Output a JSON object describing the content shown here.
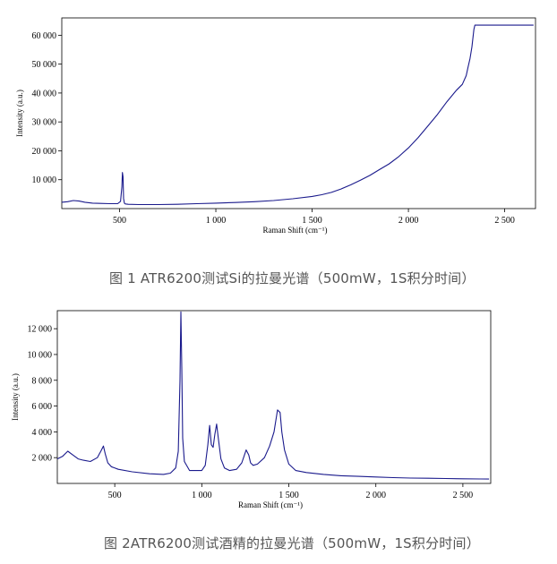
{
  "captions": {
    "fig1": "图 1 ATR6200测试Si的拉曼光谱（500mW，1S积分时间）",
    "fig2": "图 2ATR6200测试酒精的拉曼光谱（500mW，1S积分时间）"
  },
  "chart_data": [
    {
      "type": "line",
      "title": "",
      "xlabel": "Raman Shift (cm⁻¹)",
      "ylabel": "Intensity (a.u.)",
      "xlim": [
        200,
        2660
      ],
      "ylim": [
        0,
        66000
      ],
      "xticks": [
        500,
        1000,
        1500,
        2000,
        2500
      ],
      "xtick_labels": [
        "500",
        "1 000",
        "1 500",
        "2 000",
        "2 500"
      ],
      "yticks": [
        10000,
        20000,
        30000,
        40000,
        50000,
        60000
      ],
      "ytick_labels": [
        "10 000",
        "20 000",
        "30 000",
        "40 000",
        "50 000",
        "60 000"
      ],
      "grid": false,
      "color": "#1a1a8c",
      "series": [
        {
          "x": [
            200,
            230,
            260,
            290,
            320,
            360,
            400,
            450,
            490,
            505,
            512,
            515,
            518,
            521,
            525,
            530,
            545,
            600,
            700,
            800,
            900,
            1000,
            1100,
            1200,
            1300,
            1400,
            1500,
            1550,
            1600,
            1650,
            1700,
            1750,
            1800,
            1850,
            1900,
            1950,
            2000,
            2050,
            2100,
            2150,
            2200,
            2250,
            2280,
            2300,
            2310,
            2320,
            2330,
            2335,
            2340,
            2345,
            2350,
            2400,
            2500,
            2600,
            2650
          ],
          "y": [
            2200,
            2400,
            2800,
            2600,
            2200,
            1900,
            1800,
            1700,
            1700,
            2500,
            7500,
            12500,
            11000,
            3500,
            1900,
            1600,
            1500,
            1400,
            1400,
            1500,
            1700,
            1900,
            2100,
            2400,
            2800,
            3400,
            4200,
            4800,
            5600,
            6800,
            8200,
            9800,
            11500,
            13500,
            15500,
            18000,
            21000,
            24500,
            28500,
            32500,
            37000,
            41000,
            43000,
            46000,
            49000,
            52000,
            56000,
            59000,
            62000,
            63500,
            63500,
            63500,
            63500,
            63500,
            63500
          ]
        }
      ]
    },
    {
      "type": "line",
      "title": "",
      "xlabel": "Raman Shift (cm⁻¹)",
      "ylabel": "Intensity (a.u.)",
      "xlim": [
        170,
        2660
      ],
      "ylim": [
        0,
        13400
      ],
      "xticks": [
        500,
        1000,
        1500,
        2000,
        2500
      ],
      "xtick_labels": [
        "500",
        "1 000",
        "1 500",
        "2 000",
        "2 500"
      ],
      "yticks": [
        2000,
        4000,
        6000,
        8000,
        10000,
        12000
      ],
      "ytick_labels": [
        "2 000",
        "4 000",
        "6 000",
        "8 000",
        "10 000",
        "12 000"
      ],
      "grid": false,
      "color": "#1a1a8c",
      "series": [
        {
          "x": [
            170,
            200,
            230,
            260,
            290,
            320,
            360,
            400,
            420,
            435,
            445,
            460,
            480,
            520,
            600,
            700,
            780,
            820,
            850,
            865,
            875,
            880,
            885,
            890,
            900,
            930,
            1000,
            1020,
            1035,
            1045,
            1055,
            1065,
            1075,
            1085,
            1095,
            1110,
            1130,
            1160,
            1200,
            1230,
            1255,
            1270,
            1280,
            1295,
            1320,
            1360,
            1390,
            1415,
            1435,
            1450,
            1460,
            1475,
            1500,
            1540,
            1600,
            1700,
            1800,
            1900,
            2000,
            2100,
            2200,
            2300,
            2400,
            2500,
            2600,
            2650
          ],
          "y": [
            1900,
            2100,
            2500,
            2200,
            1900,
            1800,
            1700,
            2000,
            2500,
            2900,
            2300,
            1600,
            1300,
            1100,
            900,
            750,
            700,
            800,
            1200,
            2500,
            8000,
            13300,
            9000,
            3500,
            1700,
            1000,
            1000,
            1400,
            3000,
            4500,
            3000,
            2800,
            3800,
            4600,
            3500,
            1900,
            1200,
            1000,
            1100,
            1600,
            2600,
            2200,
            1600,
            1400,
            1500,
            2000,
            2900,
            4000,
            5700,
            5500,
            4000,
            2600,
            1500,
            1000,
            850,
            700,
            600,
            550,
            500,
            450,
            420,
            400,
            380,
            360,
            350,
            340
          ]
        }
      ]
    }
  ]
}
